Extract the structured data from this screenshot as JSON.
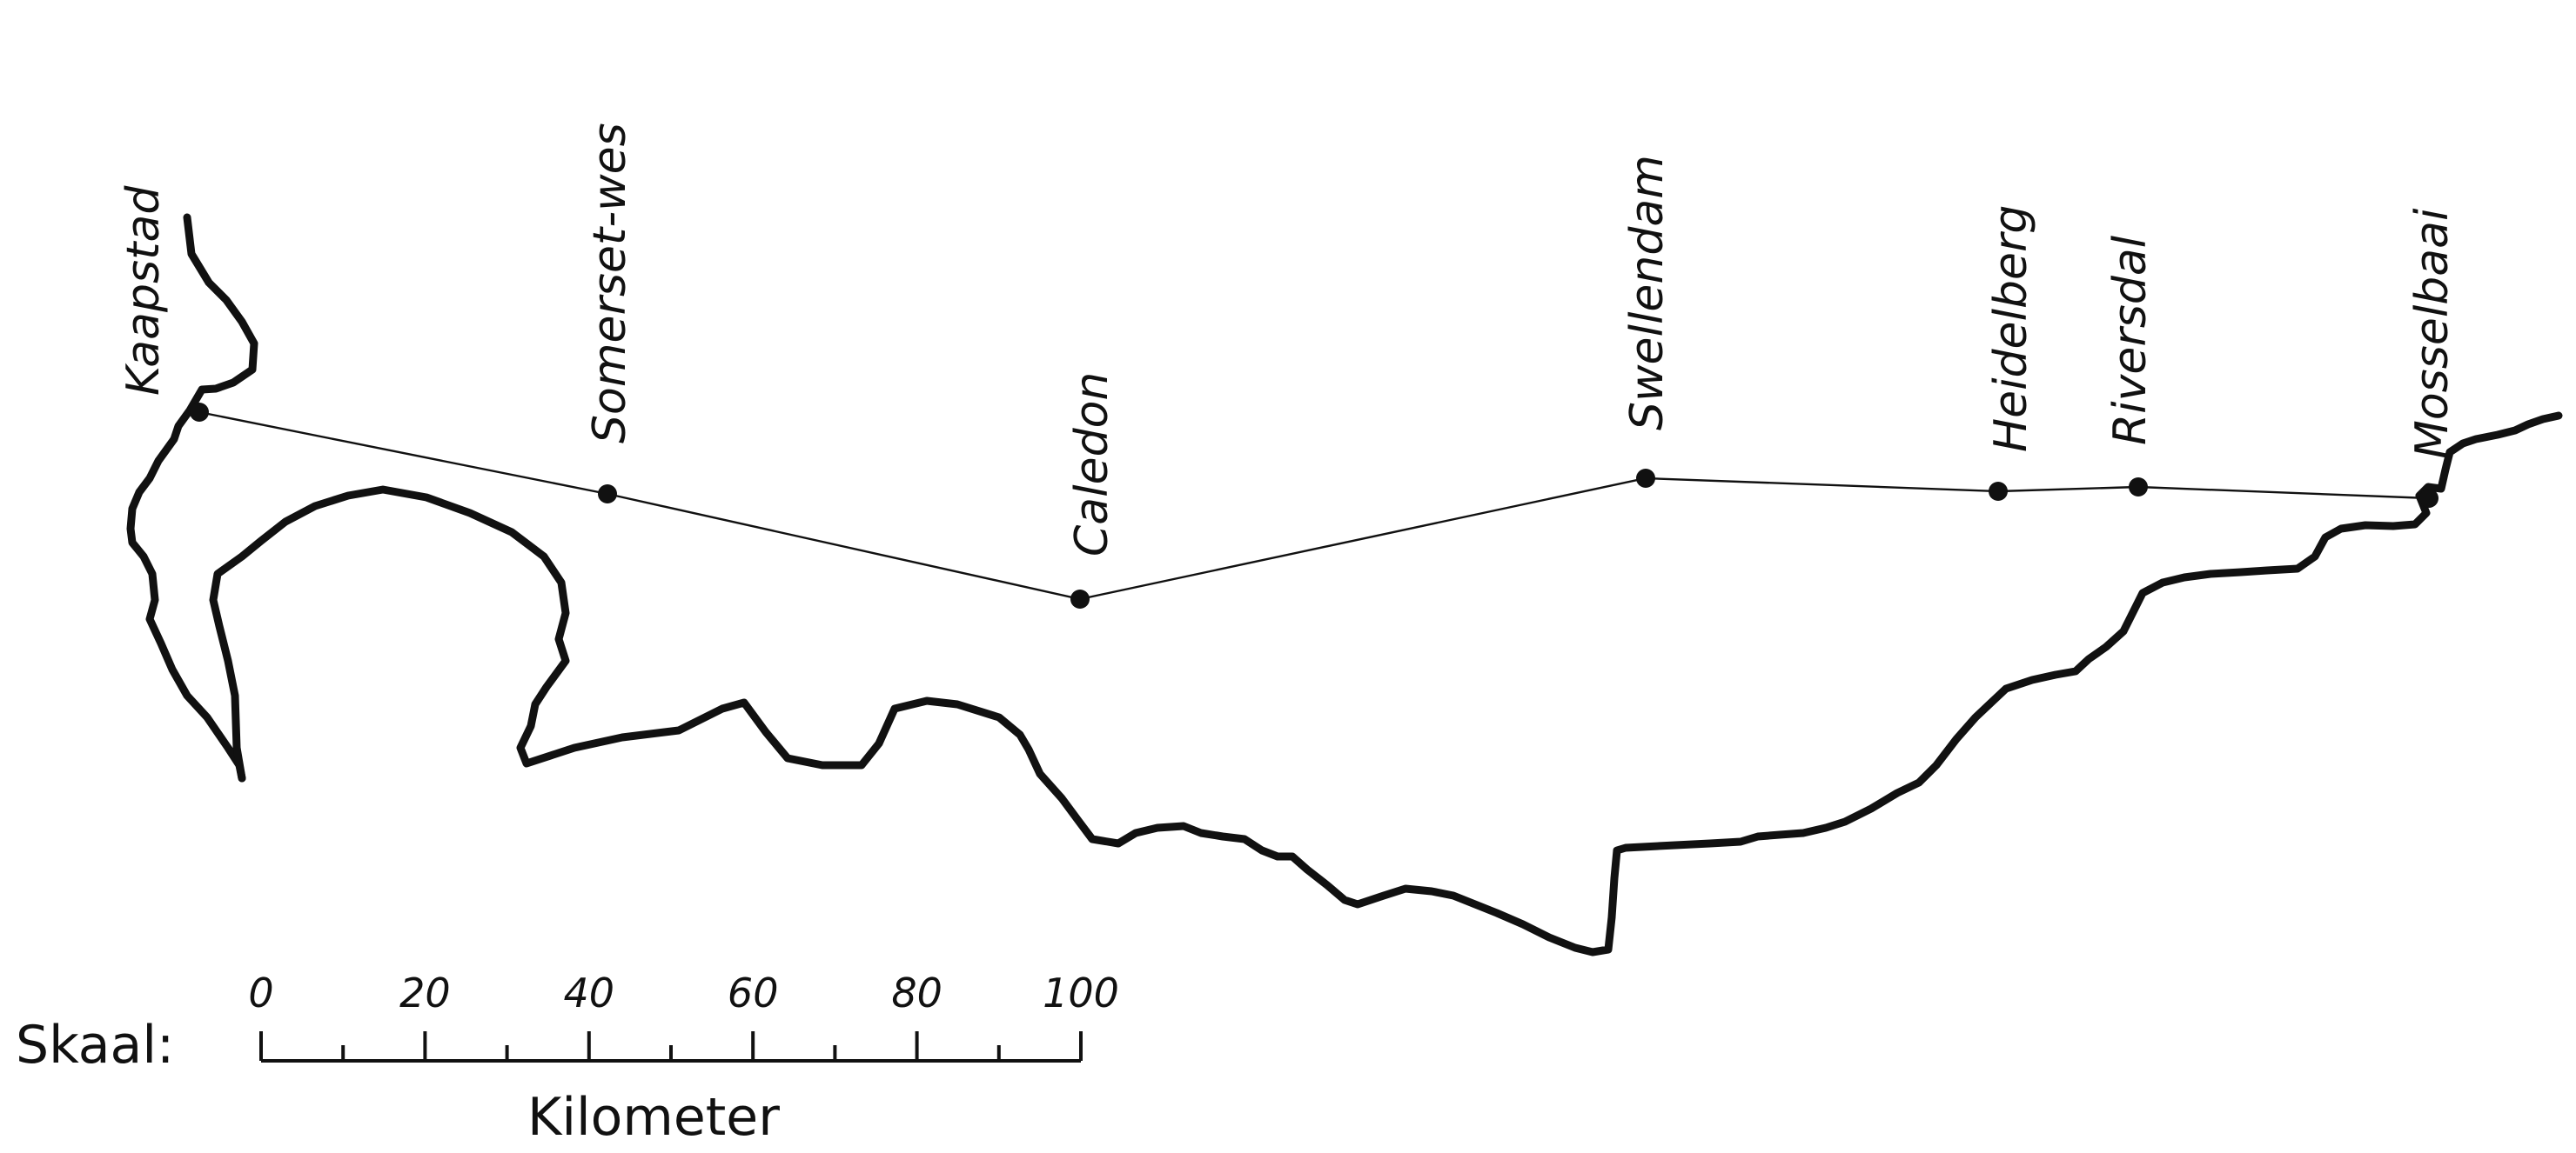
{
  "towns": [
    {
      "id": "kaapstad",
      "name": "Kaapstad"
    },
    {
      "id": "somerset-wes",
      "name": "Somerset-wes"
    },
    {
      "id": "caledon",
      "name": "Caledon"
    },
    {
      "id": "swellendam",
      "name": "Swellendam"
    },
    {
      "id": "heidelberg",
      "name": "Heidelberg"
    },
    {
      "id": "riversdal",
      "name": "Riversdal"
    },
    {
      "id": "mosselbaai",
      "name": "Mosselbaai"
    }
  ],
  "scale": {
    "label": "Skaal:",
    "unit": "Kilometer",
    "ticks": [
      "0",
      "20",
      "40",
      "60",
      "80",
      "100"
    ],
    "max_km": 100
  },
  "colors": {
    "ink": "#111111",
    "background": "#ffffff"
  }
}
